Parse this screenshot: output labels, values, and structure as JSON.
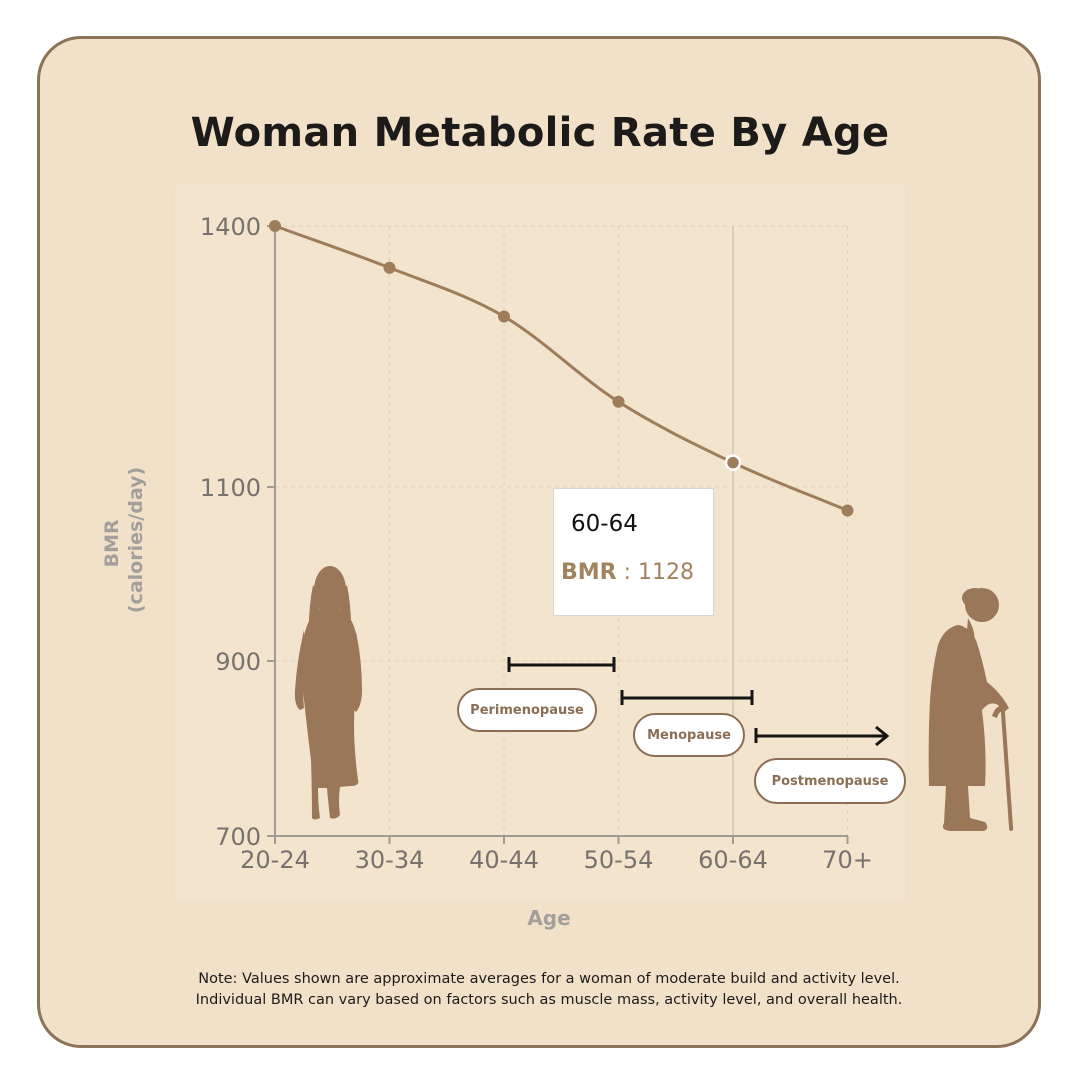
{
  "title": "Woman Metabolic Rate By Age",
  "chart_data": {
    "type": "line",
    "title": "Woman Metabolic Rate By Age",
    "xlabel": "Age",
    "ylabel": "BMR\n(calories/day)",
    "ylabel_lines": [
      "BMR",
      "(calories/day)"
    ],
    "categories": [
      "20-24",
      "30-34",
      "40-44",
      "50-54",
      "60-64",
      "70+"
    ],
    "values": [
      1400,
      1352,
      1296,
      1198,
      1128,
      1073
    ],
    "ylim": [
      700,
      1400
    ],
    "yticks": [
      700,
      900,
      1100,
      1400
    ],
    "grid": true,
    "line_color": "#9e7d5d",
    "highlighted_point": "60-64"
  },
  "tooltip": {
    "category": "60-64",
    "key": "BMR",
    "separator": " : ",
    "value": "1128"
  },
  "annotations": [
    {
      "label": "Perimenopause",
      "bracket": true
    },
    {
      "label": "Menopause",
      "bracket": true
    },
    {
      "label": "Postmenopause",
      "arrow": true
    }
  ],
  "silhouettes": [
    {
      "icon": "young-woman-silhouette-icon"
    },
    {
      "icon": "elderly-woman-with-cane-icon"
    }
  ],
  "colors": {
    "background": "#f1e1c9",
    "border": "#8c7257",
    "accent": "#9e7d5d",
    "silhouette": "#9a7758",
    "axis": "#a19b94",
    "tick_label": "#77726d",
    "axis_title": "#a3a09b"
  },
  "note": {
    "line1": "Note: Values shown are approximate averages for a woman of moderate build and activity level.",
    "line2": "Individual BMR can vary based on factors such as muscle mass, activity level, and overall health."
  }
}
